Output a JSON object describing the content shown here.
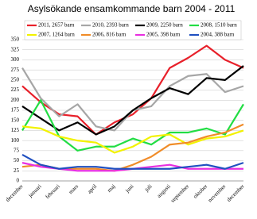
{
  "chart_data": {
    "type": "line",
    "title": "Asylsökande ensamkommande barn 2004 - 2011",
    "categories": [
      "december",
      "januari",
      "februari",
      "mars",
      "april",
      "maj",
      "juni",
      "juli",
      "augusti",
      "september",
      "oktober",
      "november",
      "december"
    ],
    "series": [
      {
        "name": "2011, 2657 barn",
        "color": "#e8202a",
        "values": [
          235,
          195,
          165,
          160,
          115,
          145,
          165,
          205,
          280,
          305,
          335,
          300,
          280
        ]
      },
      {
        "name": "2010, 2393 barn",
        "color": "#a6a6a6",
        "values": [
          280,
          205,
          160,
          190,
          135,
          125,
          175,
          185,
          235,
          260,
          265,
          220,
          235
        ]
      },
      {
        "name": "2009, 2250 barn",
        "color": "#000000",
        "values": [
          185,
          155,
          125,
          145,
          115,
          135,
          175,
          205,
          230,
          215,
          255,
          250,
          285
        ]
      },
      {
        "name": "2008, 1510 barn",
        "color": "#22dd44",
        "values": [
          125,
          200,
          110,
          75,
          85,
          85,
          105,
          90,
          120,
          120,
          130,
          115,
          190
        ]
      },
      {
        "name": "2007, 1264 barn",
        "color": "#f2f200",
        "values": [
          135,
          130,
          110,
          100,
          95,
          70,
          85,
          110,
          115,
          90,
          105,
          110,
          125
        ]
      },
      {
        "name": "2006, 816 barn",
        "color": "#f08c28",
        "values": [
          35,
          40,
          30,
          30,
          30,
          25,
          40,
          60,
          90,
          95,
          110,
          120,
          140
        ]
      },
      {
        "name": "2005, 398 barn",
        "color": "#e830e0",
        "values": [
          45,
          35,
          30,
          25,
          25,
          25,
          30,
          35,
          40,
          30,
          30,
          30,
          30
        ]
      },
      {
        "name": "2004, 388 barn",
        "color": "#2050c0",
        "values": [
          65,
          40,
          30,
          35,
          35,
          30,
          30,
          30,
          30,
          35,
          40,
          30,
          45
        ]
      }
    ],
    "ylim": [
      0,
      350
    ],
    "yticks": [
      0,
      25,
      50,
      75,
      100,
      125,
      150,
      175,
      200,
      225,
      250,
      275,
      300,
      325,
      350
    ],
    "grid": true
  }
}
